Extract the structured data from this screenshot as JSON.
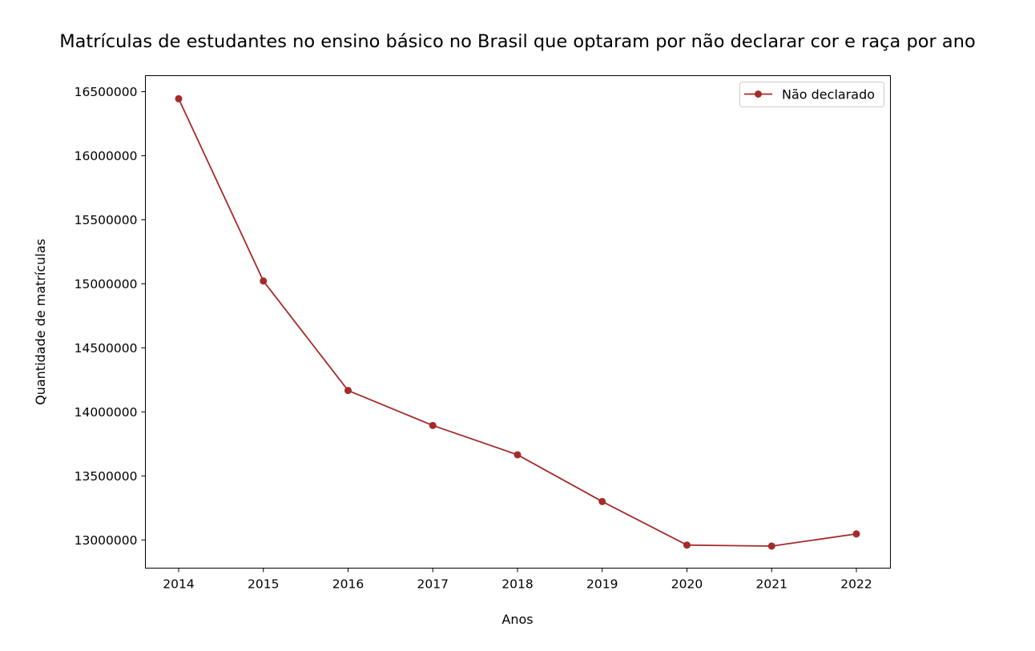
{
  "chart_data": {
    "type": "line",
    "title": "Matrículas de estudantes no ensino básico no Brasil que optaram por não declarar cor e raça por ano",
    "xlabel": "Anos",
    "ylabel": "Quantidade de matrículas",
    "x": [
      "2014",
      "2015",
      "2016",
      "2017",
      "2018",
      "2019",
      "2020",
      "2021",
      "2022"
    ],
    "series": [
      {
        "name": "Não declarado",
        "color": "#a52a2a",
        "marker": "circle",
        "values": [
          16445000,
          15022000,
          14167000,
          13894000,
          13665000,
          13300000,
          12960000,
          12952000,
          13047000
        ]
      }
    ],
    "yticks": [
      13000000,
      13500000,
      14000000,
      14500000,
      15000000,
      15500000,
      16000000,
      16500000
    ],
    "ytick_labels": [
      "13000000",
      "13500000",
      "14000000",
      "14500000",
      "15000000",
      "15500000",
      "16000000",
      "16500000"
    ],
    "ylim": [
      12780000,
      16625000
    ],
    "legend": "top-right",
    "grid": false
  }
}
